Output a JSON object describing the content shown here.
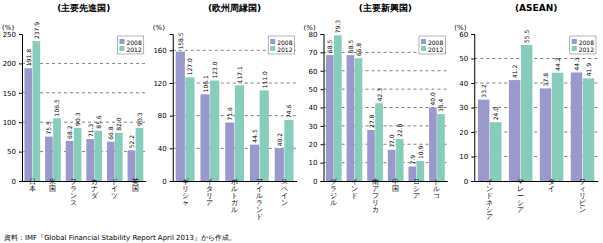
{
  "chart_data": [
    {
      "type": "bar",
      "title": "(主要先進国)",
      "ylabel": "(%)",
      "categories": [
        "日\n本",
        "米\n国",
        "フ\nラ\nン\nス",
        "カ\nナ\nダ",
        "ド\nイ\nツ",
        "英\n国"
      ],
      "series": [
        {
          "name": "2008",
          "color": "#9999cc",
          "values": [
            191.8,
            75.5,
            68.2,
            71.3,
            66.8,
            52.2
          ],
          "value_labels": [
            "191.8",
            "75.5",
            "68.2",
            "71.3",
            "66.8",
            "52.2"
          ]
        },
        {
          "name": "2012",
          "color": "#88ccbb",
          "values": [
            237.9,
            106.5,
            90.3,
            85.6,
            82.0,
            90.3
          ],
          "value_labels": [
            "237.9",
            "106.5",
            "90.3",
            "85.6",
            "82.0",
            "90.3"
          ]
        }
      ],
      "ylim": [
        0,
        250
      ],
      "yticks": [
        0,
        50,
        100,
        150,
        200,
        250
      ],
      "grid": true,
      "legend": "upper right",
      "data_labels": true
    },
    {
      "type": "bar",
      "title": "(欧州周縁国)",
      "ylabel": "(%)",
      "categories": [
        "ギ\nリ\nシ\nャ",
        "イ\nタ\nリ\nア",
        "ポ\nル\nト\nガ\nル",
        "ア\nイ\nル\nラ\nン\nド",
        "ス\nペ\nイ\nン"
      ],
      "series": [
        {
          "name": "2008",
          "color": "#9999cc",
          "values": [
            158.5,
            106.1,
            71.6,
            44.5,
            40.2
          ],
          "value_labels": [
            "158.5",
            "106.1",
            "71.6",
            "44.5",
            "40.2"
          ]
        },
        {
          "name": "2012",
          "color": "#88ccbb",
          "values": [
            127.0,
            123.0,
            117.1,
            111.0,
            74.6
          ],
          "value_labels": [
            "127.0",
            "123.0",
            "117.1",
            "111.0",
            "74.6"
          ]
        }
      ],
      "ylim": [
        0,
        180
      ],
      "yticks": [
        0,
        40,
        80,
        120,
        160
      ],
      "grid": true,
      "legend": "upper right",
      "data_labels": true
    },
    {
      "type": "bar",
      "title": "(主要新興国)",
      "ylabel": "(%)",
      "categories": [
        "ブ\nラ\nジ\nル",
        "イ\nン\nド",
        "南\nア\nフ\nリ\nカ",
        "中\n国",
        "ロ\nシ\nア",
        "ト\nル\nコ"
      ],
      "series": [
        {
          "name": "2008",
          "color": "#9999cc",
          "values": [
            68.5,
            68.5,
            27.8,
            17.0,
            7.9,
            40.0
          ],
          "value_labels": [
            "68.5",
            "68.5",
            "27.8",
            "17.0",
            "7.9",
            "40.0"
          ]
        },
        {
          "name": "2012",
          "color": "#88ccbb",
          "values": [
            79.3,
            66.8,
            42.3,
            22.8,
            10.9,
            36.4
          ],
          "value_labels": [
            "79.3",
            "66.8",
            "42.3",
            "22.8",
            "10.9",
            "36.4"
          ]
        }
      ],
      "ylim": [
        0,
        80
      ],
      "yticks": [
        0,
        10,
        20,
        30,
        40,
        50,
        60,
        70,
        80
      ],
      "grid": true,
      "legend": "upper right",
      "data_labels": true
    },
    {
      "type": "bar",
      "title": "(ASEAN)",
      "ylabel": "(%)",
      "categories": [
        "イ\nン\nド\nネ\nシ\nア",
        "マ\nレ\nー\nシ\nア",
        "タ\nイ",
        "フ\nィ\nリ\nピ\nン"
      ],
      "series": [
        {
          "name": "2008",
          "color": "#9999cc",
          "values": [
            33.2,
            41.2,
            37.8,
            44.3
          ],
          "value_labels": [
            "33.2",
            "41.2",
            "37.8",
            "44.3"
          ]
        },
        {
          "name": "2012",
          "color": "#88ccbb",
          "values": [
            24.0,
            55.5,
            44.2,
            41.9
          ],
          "value_labels": [
            "24.0",
            "55.5",
            "44.2",
            "41.9"
          ]
        }
      ],
      "ylim": [
        0,
        60
      ],
      "yticks": [
        0,
        10,
        20,
        30,
        40,
        50,
        60
      ],
      "grid": true,
      "legend": "upper right",
      "data_labels": true
    }
  ],
  "source": "資料：IMF『Global Financial Stability Report April 2013』から作成。"
}
